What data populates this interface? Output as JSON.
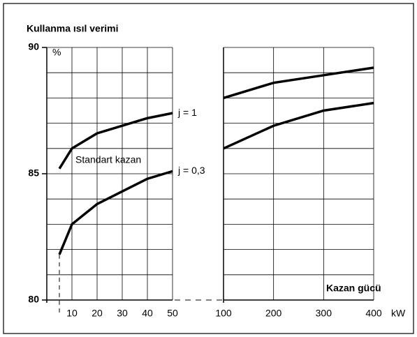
{
  "chart_data": {
    "type": "line",
    "title": "Kullanma ısıl verimi",
    "y_unit": "%",
    "x_label": "Kazan gücü",
    "x_unit": "kW",
    "ylim": [
      80,
      90
    ],
    "yticks": [
      80,
      85,
      90
    ],
    "ygrid": [
      80,
      81,
      82,
      83,
      84,
      85,
      86,
      87,
      88,
      89,
      90
    ],
    "grid": true,
    "color": "#000000",
    "annotation": "Standart kazan",
    "panels": [
      {
        "xlim": [
          0,
          50
        ],
        "xticks": [
          10,
          20,
          30,
          40,
          50
        ],
        "series": [
          {
            "name": "j = 1",
            "x": [
              5,
              10,
              20,
              30,
              40,
              50
            ],
            "values": [
              85.2,
              86.0,
              86.6,
              86.9,
              87.2,
              87.4
            ]
          },
          {
            "name": "j = 0,3",
            "x": [
              5,
              10,
              20,
              30,
              40,
              50
            ],
            "values": [
              81.8,
              83.0,
              83.8,
              84.3,
              84.8,
              85.1
            ]
          }
        ]
      },
      {
        "xlim": [
          100,
          400
        ],
        "xticks": [
          100,
          200,
          300,
          400
        ],
        "series": [
          {
            "x": [
              100,
              200,
              300,
              400
            ],
            "values": [
              88.0,
              88.6,
              88.9,
              89.2
            ]
          },
          {
            "x": [
              100,
              200,
              300,
              400
            ],
            "values": [
              86.0,
              86.9,
              87.5,
              87.8
            ]
          }
        ]
      }
    ]
  }
}
